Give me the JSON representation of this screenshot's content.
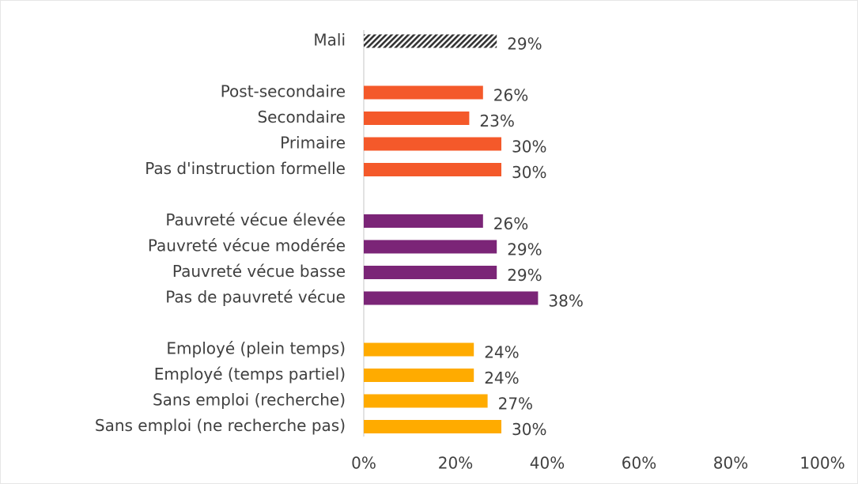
{
  "chart_data": {
    "type": "hbar",
    "categories": [
      "Mali",
      null,
      "Post-secondaire",
      "Secondaire",
      "Primaire",
      "Pas d'instruction formelle",
      null,
      "Pauvreté vécue élevée",
      "Pauvreté vécue modérée",
      "Pauvreté vécue basse",
      "Pas de pauvreté vécue",
      null,
      "Employé (plein temps)",
      "Employé (temps partiel)",
      "Sans emploi (recherche)",
      "Sans emploi (ne recherche pas)"
    ],
    "values": [
      29,
      null,
      26,
      23,
      30,
      30,
      null,
      26,
      29,
      29,
      38,
      null,
      24,
      24,
      27,
      30
    ],
    "value_labels": [
      "29%",
      null,
      "26%",
      "23%",
      "30%",
      "30%",
      null,
      "26%",
      "29%",
      "29%",
      "38%",
      null,
      "24%",
      "24%",
      "27%",
      "30%"
    ],
    "colors": [
      "#333333",
      null,
      "#f4592a",
      "#f4592a",
      "#f4592a",
      "#f4592a",
      null,
      "#7b2577",
      "#7b2577",
      "#7b2577",
      "#7b2577",
      null,
      "#ffab00",
      "#ffab00",
      "#ffab00",
      "#ffab00"
    ],
    "patterns": [
      "hatch",
      null,
      "solid",
      "solid",
      "solid",
      "solid",
      null,
      "solid",
      "solid",
      "solid",
      "solid",
      null,
      "solid",
      "solid",
      "solid",
      "solid"
    ],
    "xlim": [
      0,
      100
    ],
    "xticks": [
      {
        "value": 0,
        "label": "0%"
      },
      {
        "value": 20,
        "label": "20%"
      },
      {
        "value": 40,
        "label": "40%"
      },
      {
        "value": 60,
        "label": "60%"
      },
      {
        "value": 80,
        "label": "80%"
      },
      {
        "value": 100,
        "label": "100%"
      }
    ],
    "grid": false
  }
}
